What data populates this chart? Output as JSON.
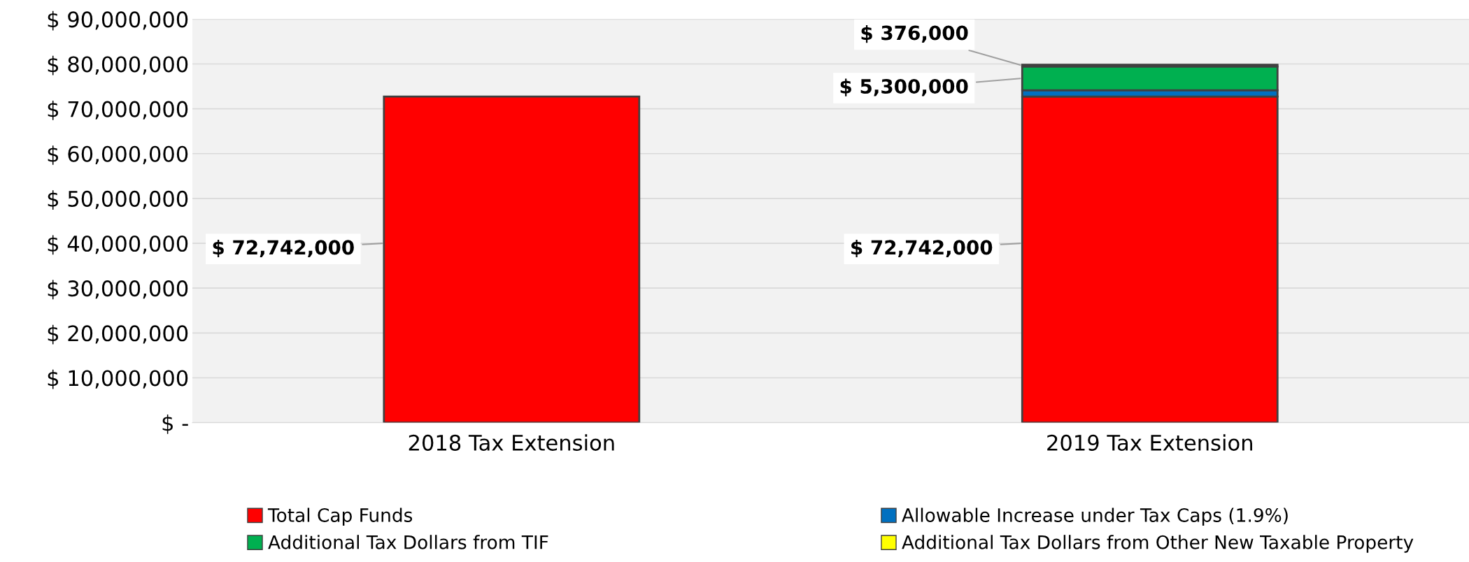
{
  "chart_data": {
    "type": "bar",
    "stacked": true,
    "categories": [
      "2018 Tax Extension",
      "2019 Tax Extension"
    ],
    "series": [
      {
        "name": "Total Cap Funds",
        "color": "#ff0000",
        "values": [
          72742000,
          72742000
        ],
        "value_labels": [
          "$ 72,742,000",
          "$ 72,742,000"
        ]
      },
      {
        "name": "Allowable Increase under Tax Caps (1.9%)",
        "color": "#0070c0",
        "values": [
          null,
          1400000
        ]
      },
      {
        "name": "Additional Tax Dollars from TIF",
        "color": "#00b050",
        "values": [
          null,
          5300000
        ],
        "value_labels": [
          null,
          "$ 5,300,000"
        ]
      },
      {
        "name": "Additional Tax Dollars from Other New Taxable Property",
        "color": "#ffff00",
        "values": [
          null,
          376000
        ],
        "value_labels": [
          null,
          "$ 376,000"
        ]
      }
    ],
    "ylim": [
      0,
      90000000
    ],
    "yticks": [
      {
        "value": 0,
        "label": "$ -"
      },
      {
        "value": 10000000,
        "label": "$ 10,000,000"
      },
      {
        "value": 20000000,
        "label": "$ 20,000,000"
      },
      {
        "value": 30000000,
        "label": "$ 30,000,000"
      },
      {
        "value": 40000000,
        "label": "$ 40,000,000"
      },
      {
        "value": 50000000,
        "label": "$ 50,000,000"
      },
      {
        "value": 60000000,
        "label": "$ 60,000,000"
      },
      {
        "value": 70000000,
        "label": "$ 70,000,000"
      },
      {
        "value": 80000000,
        "label": "$ 80,000,000"
      },
      {
        "value": 90000000,
        "label": "$ 90,000,000"
      }
    ],
    "grid": "y",
    "legend": "bottom"
  }
}
